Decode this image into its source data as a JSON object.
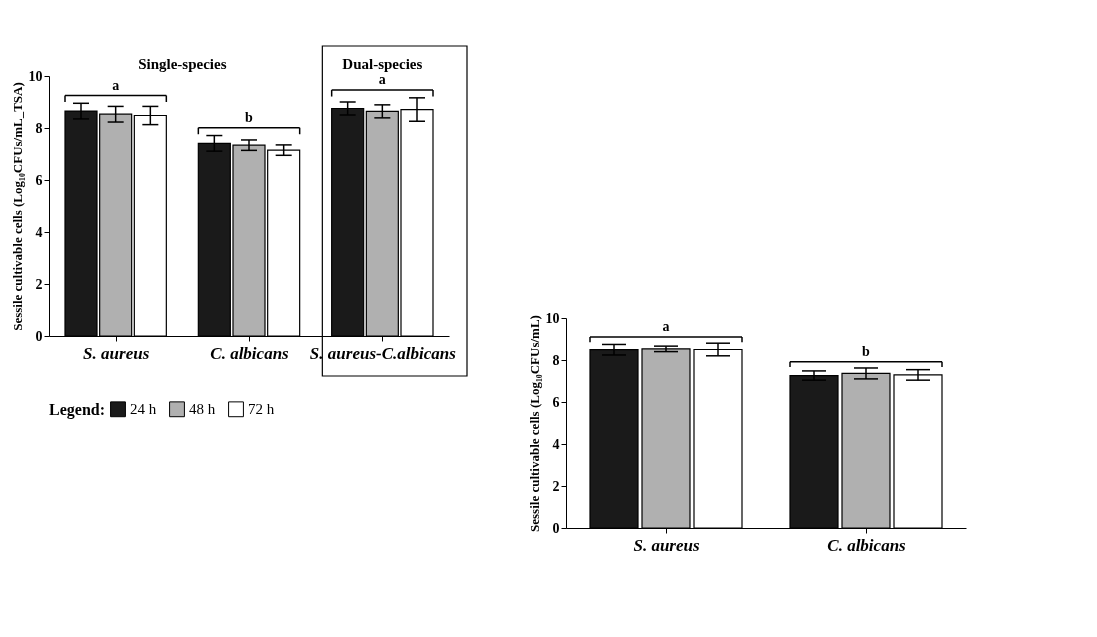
{
  "chart_data": [
    {
      "type": "bar",
      "ylabel": "Sessile cultivable cells (Log₁₀CFUs/mL_TSA)",
      "categories": [
        "S. aureus",
        "C. albicans",
        "S. aureus-C.albicans"
      ],
      "series": [
        {
          "name": "24 h",
          "color": "#1a1a1a",
          "values": [
            8.65,
            7.41,
            8.75
          ],
          "errors": [
            0.3,
            0.3,
            0.25
          ]
        },
        {
          "name": "48 h",
          "color": "#b0b0b0",
          "values": [
            8.53,
            7.34,
            8.64
          ],
          "errors": [
            0.3,
            0.2,
            0.25
          ]
        },
        {
          "name": "72 h",
          "color": "#ffffff",
          "values": [
            8.48,
            7.15,
            8.71
          ],
          "errors": [
            0.35,
            0.2,
            0.45
          ]
        }
      ],
      "ylim": [
        0,
        10
      ],
      "yticks": [
        0,
        2,
        4,
        6,
        8,
        10
      ],
      "grid": false,
      "legend": "bottom",
      "legend_title": "Legend:",
      "annotations": [
        "Single-species",
        "Dual-species",
        "a",
        "b",
        "a"
      ]
    },
    {
      "type": "bar",
      "ylabel": "Sessile cultivable cells (Log₁₀CFUs/mL)",
      "categories": [
        "S. aureus",
        "C. albicans"
      ],
      "series": [
        {
          "color": "#1a1a1a",
          "values": [
            8.49,
            7.26
          ],
          "errors": [
            0.25,
            0.22
          ]
        },
        {
          "color": "#b0b0b0",
          "values": [
            8.53,
            7.36
          ],
          "errors": [
            0.13,
            0.26
          ]
        },
        {
          "color": "#ffffff",
          "values": [
            8.5,
            7.29
          ],
          "errors": [
            0.3,
            0.25
          ]
        }
      ],
      "ylim": [
        0,
        10
      ],
      "yticks": [
        0,
        2,
        4,
        6,
        8,
        10
      ],
      "grid": false,
      "legend": false,
      "annotations": [
        "a",
        "b"
      ]
    }
  ]
}
